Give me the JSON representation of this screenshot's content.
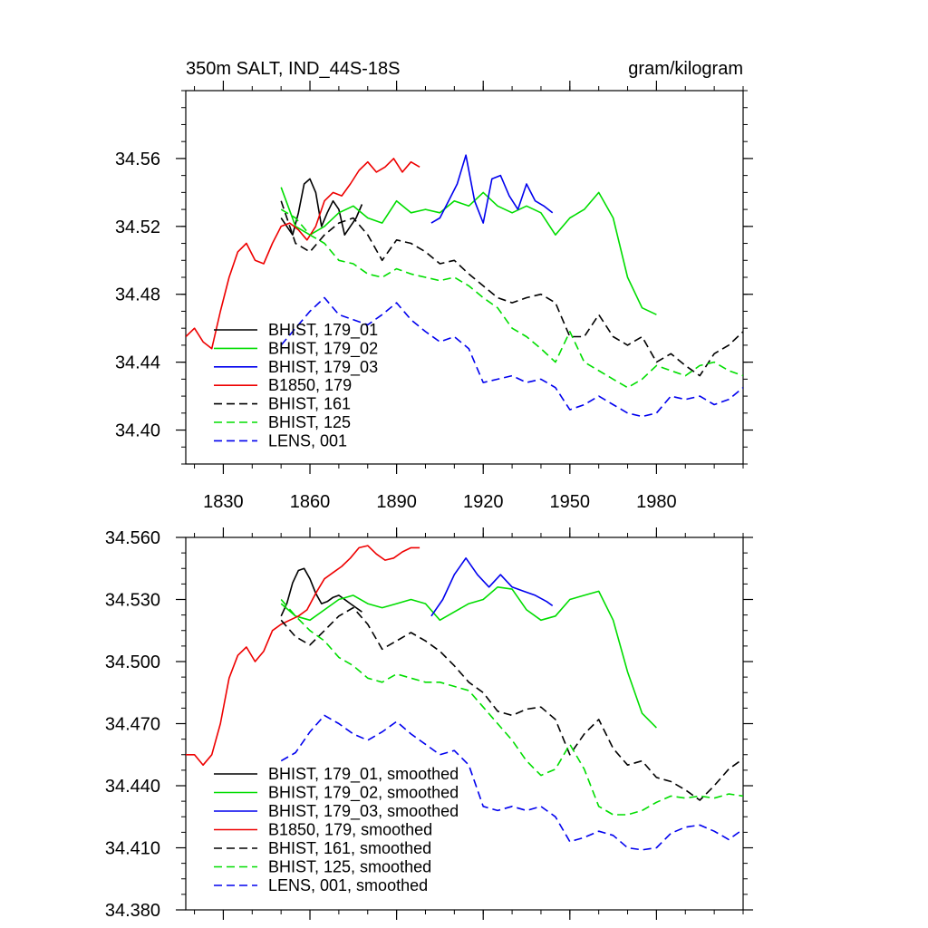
{
  "chart_data": [
    {
      "type": "line",
      "title_left": "350m SALT, IND_44S-18S",
      "title_right": "gram/kilogram",
      "xlabel": "",
      "ylabel": "",
      "xlim": [
        1817,
        2010
      ],
      "ylim": [
        34.38,
        34.6
      ],
      "xticks": [
        1830,
        1860,
        1890,
        1920,
        1950,
        1980
      ],
      "yticks": [
        34.4,
        34.44,
        34.48,
        34.52,
        34.56
      ],
      "ytick_labels": [
        "34.40",
        "34.44",
        "34.48",
        "34.52",
        "34.56"
      ],
      "xtick_labels": [
        "1830",
        "1860",
        "1890",
        "1920",
        "1950",
        "1980"
      ],
      "legend_position": "lower-left",
      "series": [
        {
          "name": "BHIST, 179_01",
          "color": "#000000",
          "dashed": false,
          "x": [
            1850,
            1852,
            1854,
            1856,
            1858,
            1860,
            1862,
            1864,
            1866,
            1868,
            1870,
            1872,
            1874,
            1876,
            1878
          ],
          "y": [
            34.525,
            34.52,
            34.515,
            34.528,
            34.545,
            34.548,
            34.54,
            34.52,
            34.528,
            34.535,
            34.53,
            34.515,
            34.52,
            34.525,
            34.533
          ]
        },
        {
          "name": "BHIST, 179_02",
          "color": "#00dd00",
          "dashed": false,
          "x": [
            1850,
            1855,
            1860,
            1865,
            1870,
            1875,
            1880,
            1885,
            1890,
            1895,
            1900,
            1905,
            1910,
            1915,
            1920,
            1925,
            1930,
            1935,
            1940,
            1945,
            1950,
            1955,
            1960,
            1965,
            1970,
            1975,
            1980
          ],
          "y": [
            34.543,
            34.52,
            34.515,
            34.52,
            34.528,
            34.532,
            34.525,
            34.522,
            34.535,
            34.528,
            34.53,
            34.528,
            34.535,
            34.532,
            34.54,
            34.532,
            34.528,
            34.532,
            34.528,
            34.515,
            34.525,
            34.53,
            34.54,
            34.525,
            34.49,
            34.472,
            34.468
          ]
        },
        {
          "name": "BHIST, 179_03",
          "color": "#0000ee",
          "dashed": false,
          "x": [
            1902,
            1905,
            1908,
            1911,
            1914,
            1917,
            1920,
            1923,
            1926,
            1929,
            1932,
            1935,
            1938,
            1941,
            1944
          ],
          "y": [
            34.522,
            34.525,
            34.535,
            34.545,
            34.562,
            34.535,
            34.522,
            34.548,
            34.55,
            34.538,
            34.53,
            34.545,
            34.535,
            34.532,
            34.528
          ]
        },
        {
          "name": "B1850, 179",
          "color": "#ee0000",
          "dashed": false,
          "x": [
            1817,
            1820,
            1823,
            1826,
            1829,
            1832,
            1835,
            1838,
            1841,
            1844,
            1847,
            1850,
            1853,
            1856,
            1859,
            1862,
            1865,
            1868,
            1871,
            1874,
            1877,
            1880,
            1883,
            1886,
            1889,
            1892,
            1895,
            1898
          ],
          "y": [
            34.455,
            34.46,
            34.452,
            34.448,
            34.47,
            34.49,
            34.505,
            34.51,
            34.5,
            34.498,
            34.51,
            34.52,
            34.522,
            34.518,
            34.512,
            34.52,
            34.535,
            34.54,
            34.538,
            34.545,
            34.553,
            34.558,
            34.552,
            34.555,
            34.56,
            34.552,
            34.558,
            34.555
          ]
        },
        {
          "name": "BHIST, 161",
          "color": "#000000",
          "dashed": true,
          "x": [
            1850,
            1855,
            1860,
            1865,
            1870,
            1875,
            1880,
            1885,
            1890,
            1895,
            1900,
            1905,
            1910,
            1915,
            1920,
            1925,
            1930,
            1935,
            1940,
            1945,
            1950,
            1955,
            1960,
            1965,
            1970,
            1975,
            1980,
            1985,
            1990,
            1995,
            2000,
            2005,
            2010
          ],
          "y": [
            34.535,
            34.51,
            34.505,
            34.515,
            34.522,
            34.525,
            34.515,
            34.5,
            34.512,
            34.51,
            34.505,
            34.498,
            34.5,
            34.492,
            34.485,
            34.478,
            34.475,
            34.478,
            34.48,
            34.475,
            34.455,
            34.455,
            34.468,
            34.455,
            34.45,
            34.455,
            34.44,
            34.445,
            34.438,
            34.432,
            34.445,
            34.45,
            34.458
          ]
        },
        {
          "name": "BHIST, 125",
          "color": "#00dd00",
          "dashed": true,
          "x": [
            1850,
            1855,
            1860,
            1865,
            1870,
            1875,
            1880,
            1885,
            1890,
            1895,
            1900,
            1905,
            1910,
            1915,
            1920,
            1925,
            1930,
            1935,
            1940,
            1945,
            1950,
            1955,
            1960,
            1965,
            1970,
            1975,
            1980,
            1985,
            1990,
            1995,
            2000,
            2005,
            2010
          ],
          "y": [
            34.53,
            34.525,
            34.515,
            34.51,
            34.5,
            34.498,
            34.492,
            34.49,
            34.495,
            34.492,
            34.49,
            34.488,
            34.49,
            34.485,
            34.478,
            34.472,
            34.46,
            34.455,
            34.448,
            34.44,
            34.458,
            34.44,
            34.435,
            34.43,
            34.425,
            34.43,
            34.438,
            34.435,
            34.432,
            34.438,
            34.44,
            34.435,
            34.432
          ]
        },
        {
          "name": "LENS, 001",
          "color": "#0000ee",
          "dashed": true,
          "x": [
            1850,
            1855,
            1860,
            1865,
            1870,
            1875,
            1880,
            1885,
            1890,
            1895,
            1900,
            1905,
            1910,
            1915,
            1920,
            1925,
            1930,
            1935,
            1940,
            1945,
            1950,
            1955,
            1960,
            1965,
            1970,
            1975,
            1980,
            1985,
            1990,
            1995,
            2000,
            2005,
            2010
          ],
          "y": [
            34.45,
            34.46,
            34.47,
            34.478,
            34.468,
            34.465,
            34.462,
            34.468,
            34.475,
            34.465,
            34.458,
            34.452,
            34.455,
            34.448,
            34.428,
            34.43,
            34.432,
            34.428,
            34.43,
            34.425,
            34.412,
            34.415,
            34.42,
            34.415,
            34.41,
            34.408,
            34.41,
            34.42,
            34.418,
            34.42,
            34.415,
            34.418,
            34.425
          ]
        }
      ]
    },
    {
      "type": "line",
      "title_left": "",
      "title_right": "",
      "xlabel": "",
      "ylabel": "",
      "xlim": [
        1817,
        2010
      ],
      "ylim": [
        34.38,
        34.56
      ],
      "xticks": [
        1830,
        1860,
        1890,
        1920,
        1950,
        1980
      ],
      "yticks": [
        34.38,
        34.41,
        34.44,
        34.47,
        34.5,
        34.53,
        34.56
      ],
      "ytick_labels": [
        "34.380",
        "34.410",
        "34.440",
        "34.470",
        "34.500",
        "34.530",
        "34.560"
      ],
      "xtick_labels": [],
      "legend_position": "lower-left",
      "series": [
        {
          "name": "BHIST, 179_01, smoothed",
          "color": "#000000",
          "dashed": false,
          "x": [
            1850,
            1852,
            1854,
            1856,
            1858,
            1860,
            1862,
            1864,
            1866,
            1868,
            1870,
            1872,
            1874,
            1876,
            1878
          ],
          "y": [
            34.522,
            34.528,
            34.538,
            34.544,
            34.545,
            34.54,
            34.533,
            34.528,
            34.529,
            34.531,
            34.532,
            34.53,
            34.528,
            34.526,
            34.524
          ]
        },
        {
          "name": "BHIST, 179_02, smoothed",
          "color": "#00dd00",
          "dashed": false,
          "x": [
            1850,
            1855,
            1860,
            1865,
            1870,
            1875,
            1880,
            1885,
            1890,
            1895,
            1900,
            1905,
            1910,
            1915,
            1920,
            1925,
            1930,
            1935,
            1940,
            1945,
            1950,
            1955,
            1960,
            1965,
            1970,
            1975,
            1980
          ],
          "y": [
            34.528,
            34.522,
            34.52,
            34.525,
            34.53,
            34.532,
            34.528,
            34.526,
            34.528,
            34.53,
            34.528,
            34.52,
            34.524,
            34.528,
            34.53,
            34.536,
            34.535,
            34.525,
            34.52,
            34.522,
            34.53,
            34.532,
            34.534,
            34.52,
            34.495,
            34.475,
            34.468
          ]
        },
        {
          "name": "BHIST, 179_03, smoothed",
          "color": "#0000ee",
          "dashed": false,
          "x": [
            1902,
            1906,
            1910,
            1914,
            1918,
            1922,
            1926,
            1930,
            1934,
            1938,
            1942,
            1944
          ],
          "y": [
            34.522,
            34.53,
            34.542,
            34.55,
            34.542,
            34.536,
            34.542,
            34.536,
            34.534,
            34.532,
            34.529,
            34.527
          ]
        },
        {
          "name": "B1850, 179, smoothed",
          "color": "#ee0000",
          "dashed": false,
          "x": [
            1817,
            1820,
            1823,
            1826,
            1829,
            1832,
            1835,
            1838,
            1841,
            1844,
            1847,
            1850,
            1853,
            1856,
            1859,
            1862,
            1865,
            1868,
            1871,
            1874,
            1877,
            1880,
            1883,
            1886,
            1889,
            1892,
            1895,
            1898
          ],
          "y": [
            34.455,
            34.455,
            34.45,
            34.455,
            34.47,
            34.492,
            34.503,
            34.507,
            34.5,
            34.505,
            34.515,
            34.518,
            34.52,
            34.522,
            34.525,
            34.533,
            34.54,
            34.543,
            34.546,
            34.55,
            34.555,
            34.556,
            34.552,
            34.549,
            34.55,
            34.553,
            34.555,
            34.555
          ]
        },
        {
          "name": "BHIST, 161, smoothed",
          "color": "#000000",
          "dashed": true,
          "x": [
            1850,
            1855,
            1860,
            1865,
            1870,
            1875,
            1880,
            1885,
            1890,
            1895,
            1900,
            1905,
            1910,
            1915,
            1920,
            1925,
            1930,
            1935,
            1940,
            1945,
            1950,
            1955,
            1960,
            1965,
            1970,
            1975,
            1980,
            1985,
            1990,
            1995,
            2000,
            2005,
            2010
          ],
          "y": [
            34.52,
            34.512,
            34.508,
            34.515,
            34.522,
            34.526,
            34.518,
            34.506,
            34.51,
            34.514,
            34.51,
            34.505,
            34.498,
            34.49,
            34.485,
            34.476,
            34.474,
            34.477,
            34.478,
            34.472,
            34.455,
            34.465,
            34.472,
            34.458,
            34.45,
            34.452,
            34.444,
            34.442,
            34.438,
            34.433,
            34.44,
            34.448,
            34.453
          ]
        },
        {
          "name": "BHIST, 125, smoothed",
          "color": "#00dd00",
          "dashed": true,
          "x": [
            1850,
            1855,
            1860,
            1865,
            1870,
            1875,
            1880,
            1885,
            1890,
            1895,
            1900,
            1905,
            1910,
            1915,
            1920,
            1925,
            1930,
            1935,
            1940,
            1945,
            1950,
            1955,
            1960,
            1965,
            1970,
            1975,
            1980,
            1985,
            1990,
            1995,
            2000,
            2005,
            2010
          ],
          "y": [
            34.53,
            34.522,
            34.515,
            34.51,
            34.502,
            34.498,
            34.492,
            34.49,
            34.494,
            34.492,
            34.49,
            34.49,
            34.488,
            34.486,
            34.478,
            34.47,
            34.462,
            34.452,
            34.445,
            34.448,
            34.46,
            34.448,
            34.43,
            34.426,
            34.426,
            34.428,
            34.432,
            34.435,
            34.434,
            34.435,
            34.434,
            34.436,
            34.435
          ]
        },
        {
          "name": "LENS, 001, smoothed",
          "color": "#0000ee",
          "dashed": true,
          "x": [
            1850,
            1855,
            1860,
            1865,
            1870,
            1875,
            1880,
            1885,
            1890,
            1895,
            1900,
            1905,
            1910,
            1915,
            1920,
            1925,
            1930,
            1935,
            1940,
            1945,
            1950,
            1955,
            1960,
            1965,
            1970,
            1975,
            1980,
            1985,
            1990,
            1995,
            2000,
            2005,
            2010
          ],
          "y": [
            34.452,
            34.456,
            34.466,
            34.474,
            34.47,
            34.465,
            34.462,
            34.466,
            34.471,
            34.465,
            34.46,
            34.455,
            34.457,
            34.45,
            34.43,
            34.428,
            34.43,
            34.428,
            34.43,
            34.425,
            34.413,
            34.415,
            34.418,
            34.416,
            34.41,
            34.409,
            34.41,
            34.417,
            34.42,
            34.421,
            34.418,
            34.414,
            34.419
          ]
        }
      ]
    }
  ]
}
